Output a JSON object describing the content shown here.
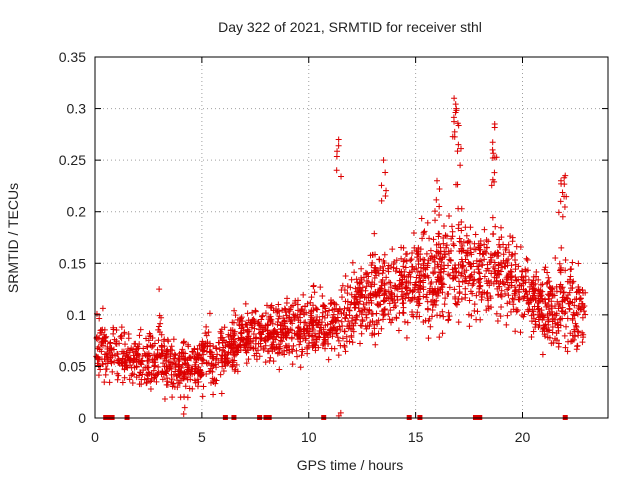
{
  "chart_data": {
    "type": "scatter",
    "title": "Day 322 of 2021, SRMTID for receiver sthl",
    "xlabel": "GPS time / hours",
    "ylabel": "SRMTID / TECUs",
    "xlim": [
      0,
      24
    ],
    "ylim": [
      0,
      0.35
    ],
    "xticks": [
      0,
      5,
      10,
      15,
      20
    ],
    "xtick_labels": [
      "0",
      "5",
      "10",
      "15",
      "20"
    ],
    "yticks": [
      0,
      0.05,
      0.1,
      0.15,
      0.2,
      0.25,
      0.3,
      0.35
    ],
    "ytick_labels": [
      "0",
      "0.05",
      "0.1",
      "0.15",
      "0.2",
      "0.25",
      "0.3",
      "0.35"
    ],
    "grid": true,
    "marker": "plus",
    "color": "#dd0000",
    "series": [
      {
        "name": "SRMTID",
        "envelope_hours": [
          0,
          1,
          2,
          3,
          4,
          5,
          6,
          7,
          8,
          9,
          10,
          11,
          12,
          13,
          14,
          15,
          16,
          17,
          18,
          19,
          20,
          21,
          22,
          23
        ],
        "envelope_center": [
          0.07,
          0.065,
          0.055,
          0.055,
          0.05,
          0.055,
          0.065,
          0.08,
          0.085,
          0.085,
          0.09,
          0.09,
          0.1,
          0.12,
          0.125,
          0.13,
          0.14,
          0.15,
          0.14,
          0.145,
          0.125,
          0.105,
          0.11,
          0.1
        ],
        "envelope_spread": [
          0.03,
          0.03,
          0.025,
          0.03,
          0.025,
          0.03,
          0.03,
          0.03,
          0.03,
          0.03,
          0.03,
          0.03,
          0.035,
          0.045,
          0.04,
          0.04,
          0.05,
          0.06,
          0.045,
          0.045,
          0.035,
          0.035,
          0.05,
          0.03
        ],
        "peaks": [
          {
            "x": 11.4,
            "y": 0.27
          },
          {
            "x": 13.5,
            "y": 0.25
          },
          {
            "x": 16.0,
            "y": 0.23
          },
          {
            "x": 16.8,
            "y": 0.31
          },
          {
            "x": 16.9,
            "y": 0.3
          },
          {
            "x": 17.0,
            "y": 0.265
          },
          {
            "x": 18.7,
            "y": 0.285
          },
          {
            "x": 18.6,
            "y": 0.26
          },
          {
            "x": 21.8,
            "y": 0.23
          },
          {
            "x": 22.0,
            "y": 0.235
          },
          {
            "x": 3.0,
            "y": 0.125
          },
          {
            "x": 11.5,
            "y": 0.005
          },
          {
            "x": 4.2,
            "y": 0.01
          }
        ],
        "gaps_hours": [
          0.5,
          0.65,
          0.8,
          1.5,
          6.1,
          6.5,
          7.7,
          8.0,
          8.15,
          10.7,
          14.7,
          15.2,
          17.8,
          18.0,
          22.0
        ]
      }
    ]
  }
}
